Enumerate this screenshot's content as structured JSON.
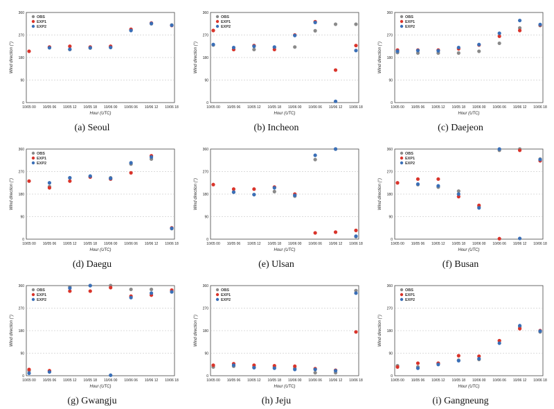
{
  "colors": {
    "OBS": "#8a8a8a",
    "EXP1": "#d9342b",
    "EXP2": "#3a6fb7",
    "grid": "#b8b8b8"
  },
  "chart_data": [
    {
      "type": "scatter",
      "caption": "(a) Seoul",
      "legend": "top-left",
      "xlabel": "Hour (UTC)",
      "ylabel": "Wind direction (°)",
      "x_ticks": [
        "10/05 00",
        "10/05 06",
        "10/05 12",
        "10/05 18",
        "10/06 00",
        "10/06 06",
        "10/06 12",
        "10/06 18"
      ],
      "y_ticks": [
        0,
        90,
        180,
        270,
        360
      ],
      "ylim": [
        0,
        360
      ],
      "grid": true,
      "series": [
        {
          "name": "OBS",
          "values": [
            null,
            220,
            212,
            218,
            222,
            290,
            315,
            310
          ]
        },
        {
          "name": "EXP1",
          "values": [
            205,
            222,
            225,
            222,
            225,
            293,
            318,
            308
          ]
        },
        {
          "name": "EXP2",
          "values": [
            null,
            219,
            213,
            219,
            220,
            288,
            316,
            309
          ]
        }
      ]
    },
    {
      "type": "scatter",
      "caption": "(b) Incheon",
      "legend": "top-left",
      "xlabel": "Hour (UTC)",
      "ylabel": "Wind direction (°)",
      "x_ticks": [
        "10/05 00",
        "10/05 06",
        "10/05 12",
        "10/05 18",
        "10/06 00",
        "10/06 06",
        "10/06 12",
        "10/06 18"
      ],
      "y_ticks": [
        0,
        90,
        180,
        270,
        360
      ],
      "ylim": [
        0,
        360
      ],
      "grid": true,
      "series": [
        {
          "name": "OBS",
          "values": [
            230,
            212,
            212,
            220,
            222,
            287,
            313,
            313
          ]
        },
        {
          "name": "EXP1",
          "values": [
            288,
            212,
            228,
            212,
            270,
            323,
            130,
            228
          ]
        },
        {
          "name": "EXP2",
          "values": [
            232,
            220,
            225,
            222,
            268,
            320,
            5,
            208
          ]
        }
      ]
    },
    {
      "type": "scatter",
      "caption": "(c) Daejeon",
      "legend": "top-left",
      "xlabel": "Hour (UTC)",
      "ylabel": "Wind direction (°)",
      "x_ticks": [
        "10/05 00",
        "10/05 06",
        "10/05 12",
        "10/05 18",
        "10/06 00",
        "10/06 06",
        "10/06 12",
        "10/06 18"
      ],
      "y_ticks": [
        0,
        90,
        180,
        270,
        360
      ],
      "ylim": [
        0,
        360
      ],
      "grid": true,
      "series": [
        {
          "name": "OBS",
          "values": [
            200,
            198,
            198,
            198,
            205,
            237,
            298,
            308
          ]
        },
        {
          "name": "EXP1",
          "values": [
            210,
            210,
            210,
            215,
            230,
            265,
            288,
            310
          ]
        },
        {
          "name": "EXP2",
          "values": [
            205,
            208,
            207,
            220,
            232,
            277,
            328,
            312
          ]
        }
      ]
    },
    {
      "type": "scatter",
      "caption": "(d) Daegu",
      "legend": "top-left",
      "xlabel": "Hour (UTC)",
      "ylabel": "Wind direction (°)",
      "x_ticks": [
        "10/05 00",
        "10/05 06",
        "10/05 12",
        "10/05 18",
        "10/06 00",
        "10/06 06",
        "10/06 12",
        "10/06 18"
      ],
      "y_ticks": [
        0,
        90,
        180,
        270,
        360
      ],
      "ylim": [
        0,
        360
      ],
      "grid": true,
      "series": [
        {
          "name": "OBS",
          "values": [
            null,
            210,
            245,
            250,
            245,
            300,
            320,
            42
          ]
        },
        {
          "name": "EXP1",
          "values": [
            232,
            205,
            232,
            248,
            240,
            265,
            333,
            45
          ]
        },
        {
          "name": "EXP2",
          "values": [
            null,
            225,
            245,
            252,
            243,
            305,
            328,
            43
          ]
        }
      ]
    },
    {
      "type": "scatter",
      "caption": "(e) Ulsan",
      "legend": "none",
      "xlabel": "Hour (UTC)",
      "ylabel": "Wind direction (°)",
      "x_ticks": [
        "10/05 00",
        "10/05 06",
        "10/05 12",
        "10/05 18",
        "10/06 00",
        "10/06 06",
        "10/06 12",
        "10/06 18"
      ],
      "y_ticks": [
        0,
        90,
        180,
        270,
        360
      ],
      "ylim": [
        0,
        360
      ],
      "grid": true,
      "series": [
        {
          "name": "OBS",
          "values": [
            null,
            188,
            178,
            190,
            172,
            318,
            360,
            10
          ]
        },
        {
          "name": "EXP1",
          "values": [
            218,
            200,
            200,
            208,
            180,
            25,
            28,
            35
          ]
        },
        {
          "name": "EXP2",
          "values": [
            null,
            188,
            178,
            205,
            175,
            335,
            360,
            12
          ]
        }
      ]
    },
    {
      "type": "scatter",
      "caption": "(f) Busan",
      "legend": "top-left",
      "xlabel": "Hour (UTC)",
      "ylabel": "Wind direction (°)",
      "x_ticks": [
        "10/05 00",
        "10/05 06",
        "10/05 12",
        "10/05 18",
        "10/06 00",
        "10/06 06",
        "10/06 12",
        "10/06 18"
      ],
      "y_ticks": [
        0,
        90,
        180,
        270,
        360
      ],
      "ylim": [
        0,
        360
      ],
      "grid": true,
      "series": [
        {
          "name": "OBS",
          "values": [
            null,
            218,
            208,
            192,
            130,
            355,
            360,
            320
          ]
        },
        {
          "name": "EXP1",
          "values": [
            225,
            240,
            240,
            170,
            135,
            2,
            355,
            313
          ]
        },
        {
          "name": "EXP2",
          "values": [
            null,
            220,
            213,
            180,
            125,
            360,
            3,
            318
          ]
        }
      ]
    },
    {
      "type": "scatter",
      "caption": "(g) Gwangju",
      "legend": "top-left",
      "xlabel": "Hour (UTC)",
      "ylabel": "Wind direction (°)",
      "x_ticks": [
        "10/05 00",
        "10/05 06",
        "10/05 12",
        "10/05 18",
        "10/06 00",
        "10/06 06",
        "10/06 12",
        "10/06 18"
      ],
      "y_ticks": [
        0,
        90,
        180,
        270,
        360
      ],
      "ylim": [
        0,
        360
      ],
      "grid": true,
      "series": [
        {
          "name": "OBS",
          "values": [
            20,
            18,
            355,
            360,
            360,
            345,
            345,
            335
          ]
        },
        {
          "name": "EXP1",
          "values": [
            25,
            20,
            338,
            338,
            352,
            318,
            322,
            342
          ]
        },
        {
          "name": "EXP2",
          "values": [
            10,
            15,
            350,
            360,
            2,
            312,
            330,
            335
          ]
        }
      ]
    },
    {
      "type": "scatter",
      "caption": "(h) Jeju",
      "legend": "top-left",
      "xlabel": "Hour (UTC)",
      "ylabel": "Wind direction (°)",
      "x_ticks": [
        "10/05 00",
        "10/05 06",
        "10/05 12",
        "10/05 18",
        "10/06 00",
        "10/06 06",
        "10/06 12",
        "10/06 18"
      ],
      "y_ticks": [
        0,
        90,
        180,
        270,
        360
      ],
      "ylim": [
        0,
        360
      ],
      "grid": true,
      "series": [
        {
          "name": "OBS",
          "values": [
            35,
            38,
            35,
            35,
            30,
            12,
            12,
            340
          ]
        },
        {
          "name": "EXP1",
          "values": [
            42,
            48,
            42,
            40,
            38,
            28,
            22,
            175
          ]
        },
        {
          "name": "EXP2",
          "values": [
            null,
            42,
            32,
            30,
            25,
            25,
            20,
            330
          ]
        }
      ]
    },
    {
      "type": "scatter",
      "caption": "(i) Gangneung",
      "legend": "top-left",
      "xlabel": "Hour (UTC)",
      "ylabel": "Wind direction (°)",
      "x_ticks": [
        "10/05 00",
        "10/05 06",
        "10/05 12",
        "10/05 18",
        "10/06 00",
        "10/06 06",
        "10/06 12",
        "10/06 18"
      ],
      "y_ticks": [
        0,
        90,
        180,
        270,
        360
      ],
      "ylim": [
        0,
        360
      ],
      "grid": true,
      "series": [
        {
          "name": "OBS",
          "values": [
            40,
            35,
            50,
            62,
            65,
            140,
            195,
            175
          ]
        },
        {
          "name": "EXP1",
          "values": [
            35,
            50,
            50,
            80,
            78,
            140,
            188,
            180
          ]
        },
        {
          "name": "EXP2",
          "values": [
            null,
            30,
            45,
            60,
            68,
            130,
            200,
            178
          ]
        }
      ]
    }
  ]
}
